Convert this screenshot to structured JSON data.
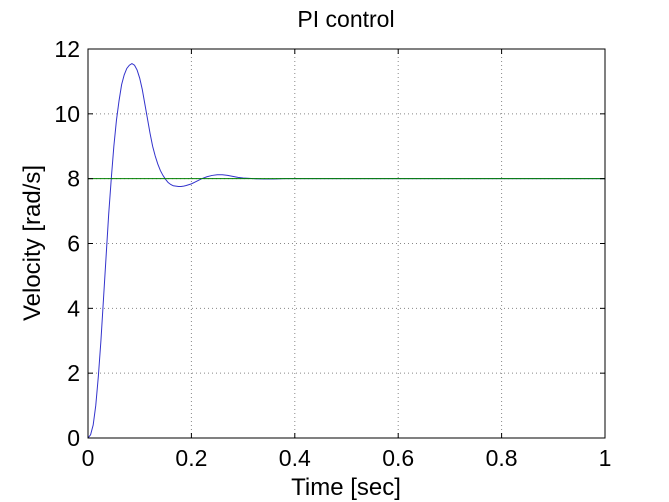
{
  "chart_data": {
    "type": "line",
    "title": "PI control",
    "xlabel": "Time [sec]",
    "ylabel": "Velocity [rad/s]",
    "xlim": [
      0,
      1
    ],
    "ylim": [
      0,
      12
    ],
    "xticks": [
      0,
      0.2,
      0.4,
      0.6,
      0.8,
      1
    ],
    "xtick_labels": [
      "0",
      "0.2",
      "0.4",
      "0.6",
      "0.8",
      "1"
    ],
    "yticks": [
      0,
      2,
      4,
      6,
      8,
      10,
      12
    ],
    "ytick_labels": [
      "0",
      "2",
      "4",
      "6",
      "8",
      "10",
      "12"
    ],
    "grid": true,
    "series": [
      {
        "color": "#3333cc",
        "x": [
          0,
          0.005,
          0.01,
          0.015,
          0.02,
          0.025,
          0.03,
          0.035,
          0.04,
          0.045,
          0.05,
          0.055,
          0.06,
          0.065,
          0.07,
          0.075,
          0.08,
          0.085,
          0.09,
          0.095,
          0.1,
          0.105,
          0.11,
          0.115,
          0.12,
          0.125,
          0.13,
          0.135,
          0.14,
          0.145,
          0.15,
          0.155,
          0.16,
          0.165,
          0.17,
          0.175,
          0.18,
          0.185,
          0.19,
          0.2,
          0.21,
          0.22,
          0.23,
          0.24,
          0.25,
          0.26,
          0.27,
          0.28,
          0.29,
          0.3,
          0.32,
          0.34,
          0.36,
          0.38,
          0.4,
          0.45,
          0.5,
          0.55,
          0.6,
          0.7,
          0.8,
          0.9,
          1.0
        ],
        "y": [
          0,
          0.1,
          0.4,
          1.0,
          1.9,
          3.0,
          4.3,
          5.6,
          6.9,
          8.0,
          9.0,
          9.8,
          10.4,
          10.9,
          11.2,
          11.4,
          11.5,
          11.55,
          11.5,
          11.35,
          11.1,
          10.75,
          10.3,
          9.85,
          9.4,
          9.0,
          8.7,
          8.45,
          8.25,
          8.1,
          7.98,
          7.88,
          7.82,
          7.78,
          7.77,
          7.76,
          7.76,
          7.77,
          7.79,
          7.84,
          7.92,
          8.0,
          8.06,
          8.1,
          8.12,
          8.12,
          8.1,
          8.07,
          8.04,
          8.02,
          8.0,
          7.99,
          7.99,
          8.0,
          8.0,
          8.0,
          8.0,
          8.0,
          8.0,
          8.0,
          8.0,
          8.0,
          8.0
        ]
      },
      {
        "color": "#008000",
        "x": [
          0,
          1
        ],
        "y": [
          8,
          8
        ]
      }
    ]
  }
}
